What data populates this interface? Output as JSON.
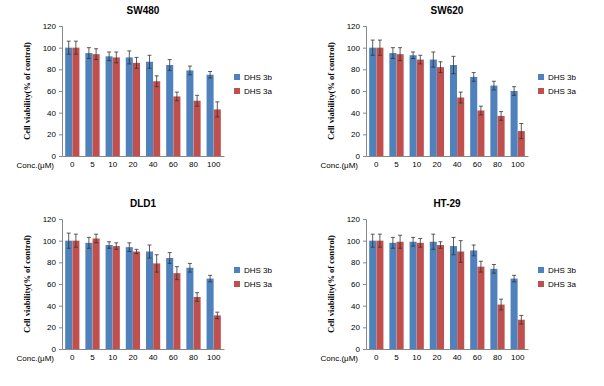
{
  "chart_data": [
    {
      "type": "bar",
      "title": "SW480",
      "x_label": "Conc.(μM)",
      "y_label": "Cell viability(% of control)",
      "categories": [
        "0",
        "5",
        "10",
        "20",
        "40",
        "60",
        "80",
        "100"
      ],
      "ylim": [
        0,
        120
      ],
      "yticks": [
        0,
        20,
        40,
        60,
        80,
        100,
        120
      ],
      "grid": false,
      "legend": "right",
      "series": [
        {
          "name": "DHS 3b",
          "color": "#4f81bd",
          "values": [
            100,
            95,
            92,
            91,
            87,
            84,
            79,
            75
          ],
          "errors": [
            6,
            5,
            4,
            6,
            6,
            5,
            4,
            3
          ]
        },
        {
          "name": "DHS 3a",
          "color": "#c0504d",
          "values": [
            100,
            94,
            91,
            86,
            69,
            55,
            51,
            43
          ],
          "errors": [
            6,
            5,
            5,
            5,
            5,
            4,
            5,
            7
          ]
        }
      ]
    },
    {
      "type": "bar",
      "title": "SW620",
      "x_label": "Conc.(μM)",
      "y_label": "Cell viability(% of control)",
      "categories": [
        "0",
        "5",
        "10",
        "20",
        "40",
        "60",
        "80",
        "100"
      ],
      "ylim": [
        0,
        120
      ],
      "yticks": [
        0,
        20,
        40,
        60,
        80,
        100,
        120
      ],
      "grid": false,
      "legend": "right",
      "series": [
        {
          "name": "DHS 3b",
          "color": "#4f81bd",
          "values": [
            100,
            95,
            93,
            89,
            84,
            73,
            65,
            60
          ],
          "errors": [
            7,
            5,
            3,
            7,
            8,
            4,
            4,
            4
          ]
        },
        {
          "name": "DHS 3a",
          "color": "#c0504d",
          "values": [
            100,
            94,
            89,
            82,
            54,
            42,
            37,
            23
          ],
          "errors": [
            7,
            6,
            4,
            5,
            5,
            4,
            4,
            7
          ]
        }
      ]
    },
    {
      "type": "bar",
      "title": "DLD1",
      "x_label": "Conc.(μM)",
      "y_label": "Cell viability(% of control)",
      "categories": [
        "0",
        "5",
        "10",
        "20",
        "40",
        "60",
        "80",
        "100"
      ],
      "ylim": [
        0,
        120
      ],
      "yticks": [
        0,
        20,
        40,
        60,
        80,
        100,
        120
      ],
      "grid": false,
      "legend": "right",
      "series": [
        {
          "name": "DHS 3b",
          "color": "#4f81bd",
          "values": [
            100,
            98,
            96,
            94,
            90,
            84,
            75,
            65
          ],
          "errors": [
            7,
            5,
            3,
            4,
            6,
            5,
            4,
            3
          ]
        },
        {
          "name": "DHS 3a",
          "color": "#c0504d",
          "values": [
            100,
            102,
            95,
            90,
            79,
            70,
            48,
            31
          ],
          "errors": [
            6,
            4,
            3,
            2,
            8,
            6,
            4,
            3
          ]
        }
      ]
    },
    {
      "type": "bar",
      "title": "HT-29",
      "x_label": "Conc.(μM)",
      "y_label": "Cell viability(% of control)",
      "categories": [
        "0",
        "5",
        "10",
        "20",
        "40",
        "60",
        "80",
        "100"
      ],
      "ylim": [
        0,
        120
      ],
      "yticks": [
        0,
        20,
        40,
        60,
        80,
        100,
        120
      ],
      "grid": false,
      "legend": "right",
      "series": [
        {
          "name": "DHS 3b",
          "color": "#4f81bd",
          "values": [
            100,
            98,
            99,
            99,
            95,
            91,
            74,
            65
          ],
          "errors": [
            6,
            5,
            4,
            7,
            8,
            5,
            4,
            3
          ]
        },
        {
          "name": "DHS 3a",
          "color": "#c0504d",
          "values": [
            100,
            99,
            98,
            96,
            90,
            76,
            41,
            27
          ],
          "errors": [
            6,
            6,
            4,
            3,
            10,
            5,
            5,
            4
          ]
        }
      ]
    }
  ]
}
